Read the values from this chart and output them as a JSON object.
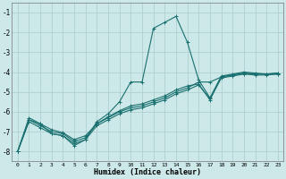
{
  "xlabel": "Humidex (Indice chaleur)",
  "xlim": [
    -0.5,
    23.5
  ],
  "ylim": [
    -8.5,
    -0.5
  ],
  "yticks": [
    -8,
    -7,
    -6,
    -5,
    -4,
    -3,
    -2,
    -1
  ],
  "xticks": [
    0,
    1,
    2,
    3,
    4,
    5,
    6,
    7,
    8,
    9,
    10,
    11,
    12,
    13,
    14,
    15,
    16,
    17,
    18,
    19,
    20,
    21,
    22,
    23
  ],
  "bg_color": "#cce8e8",
  "grid_color": "#b0d0d0",
  "line_color": "#1a7070",
  "series": [
    {
      "x": [
        0,
        1,
        2,
        3,
        4,
        5,
        6,
        7,
        8,
        9,
        10,
        11,
        12,
        13,
        14,
        15,
        16,
        17,
        18,
        19,
        20,
        21,
        22,
        23
      ],
      "y": [
        -8.0,
        -6.4,
        -6.6,
        -7.1,
        -7.2,
        -7.7,
        -7.4,
        -6.5,
        -6.1,
        -5.5,
        -4.5,
        -4.5,
        -1.8,
        -1.5,
        -1.2,
        -2.5,
        -4.4,
        -5.3,
        -4.2,
        -4.1,
        -4.0,
        -4.05,
        -4.1,
        -4.05
      ]
    },
    {
      "x": [
        0,
        1,
        2,
        3,
        4,
        5,
        6,
        7,
        8,
        9,
        10,
        11,
        12,
        13,
        14,
        15,
        16,
        17,
        18,
        19,
        20,
        21,
        22,
        23
      ],
      "y": [
        -8.0,
        -6.4,
        -6.7,
        -7.0,
        -7.1,
        -7.5,
        -7.3,
        -6.6,
        -6.3,
        -6.0,
        -5.8,
        -5.7,
        -5.5,
        -5.3,
        -5.0,
        -4.8,
        -4.5,
        -4.5,
        -4.25,
        -4.15,
        -4.05,
        -4.1,
        -4.1,
        -4.1
      ]
    },
    {
      "x": [
        0,
        1,
        2,
        3,
        4,
        5,
        6,
        7,
        8,
        9,
        10,
        11,
        12,
        13,
        14,
        15,
        16,
        17,
        18,
        19,
        20,
        21,
        22,
        23
      ],
      "y": [
        -8.0,
        -6.5,
        -6.8,
        -7.1,
        -7.2,
        -7.6,
        -7.4,
        -6.7,
        -6.4,
        -6.1,
        -5.9,
        -5.8,
        -5.6,
        -5.4,
        -5.1,
        -4.9,
        -4.65,
        -5.35,
        -4.3,
        -4.2,
        -4.1,
        -4.15,
        -4.15,
        -4.1
      ]
    },
    {
      "x": [
        0,
        1,
        2,
        3,
        4,
        5,
        6,
        7,
        8,
        9,
        10,
        11,
        12,
        13,
        14,
        15,
        16,
        17,
        18,
        19,
        20,
        21,
        22,
        23
      ],
      "y": [
        -8.0,
        -6.3,
        -6.6,
        -6.9,
        -7.05,
        -7.4,
        -7.2,
        -6.6,
        -6.25,
        -5.95,
        -5.7,
        -5.6,
        -5.4,
        -5.2,
        -4.9,
        -4.7,
        -4.6,
        -5.4,
        -4.25,
        -4.15,
        -4.05,
        -4.1,
        -4.1,
        -4.05
      ]
    }
  ]
}
